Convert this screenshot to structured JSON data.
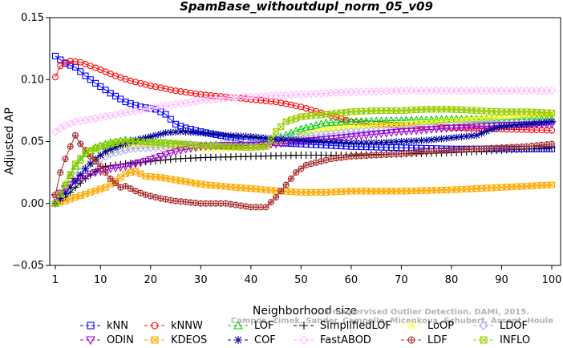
{
  "chart_data": {
    "type": "line",
    "title": "SpamBase_withoutdupl_norm_05_v09",
    "xlabel": "Neighborhood size",
    "ylabel": "Adjusted AP",
    "xlim": [
      1,
      100
    ],
    "ylim": [
      -0.05,
      0.15
    ],
    "x_ticks": [
      1,
      10,
      20,
      30,
      40,
      50,
      60,
      70,
      80,
      90,
      100
    ],
    "y_ticks": [
      -0.05,
      0.0,
      0.05,
      0.1,
      0.15
    ],
    "x_tick_labels": [
      "1",
      "10",
      "20",
      "30",
      "40",
      "50",
      "60",
      "70",
      "80",
      "90",
      "100"
    ],
    "y_tick_labels": [
      "−0.05",
      "0.00",
      "0.05",
      "0.10",
      "0.15"
    ],
    "grid": false,
    "legend_position": "bottom",
    "series": [
      {
        "name": "kNN",
        "color": "#0000ff",
        "marker": "square",
        "points": [
          [
            1,
            0.119
          ],
          [
            3,
            0.113
          ],
          [
            5,
            0.11
          ],
          [
            7,
            0.103
          ],
          [
            9,
            0.097
          ],
          [
            12,
            0.089
          ],
          [
            15,
            0.082
          ],
          [
            18,
            0.078
          ],
          [
            21,
            0.076
          ],
          [
            23,
            0.072
          ],
          [
            25,
            0.064
          ],
          [
            27,
            0.061
          ],
          [
            30,
            0.058
          ],
          [
            35,
            0.054
          ],
          [
            40,
            0.051
          ],
          [
            45,
            0.049
          ],
          [
            50,
            0.048
          ],
          [
            55,
            0.047
          ],
          [
            60,
            0.046
          ],
          [
            70,
            0.045
          ],
          [
            80,
            0.044
          ],
          [
            90,
            0.044
          ],
          [
            100,
            0.044
          ]
        ]
      },
      {
        "name": "kNNW",
        "color": "#ff0000",
        "marker": "circle",
        "points": [
          [
            1,
            0.102
          ],
          [
            2,
            0.111
          ],
          [
            3,
            0.114
          ],
          [
            4,
            0.115
          ],
          [
            6,
            0.114
          ],
          [
            8,
            0.111
          ],
          [
            10,
            0.108
          ],
          [
            13,
            0.103
          ],
          [
            16,
            0.099
          ],
          [
            20,
            0.095
          ],
          [
            25,
            0.091
          ],
          [
            30,
            0.088
          ],
          [
            35,
            0.086
          ],
          [
            40,
            0.084
          ],
          [
            45,
            0.082
          ],
          [
            50,
            0.078
          ],
          [
            55,
            0.072
          ],
          [
            60,
            0.066
          ],
          [
            65,
            0.064
          ],
          [
            70,
            0.063
          ],
          [
            80,
            0.061
          ],
          [
            90,
            0.06
          ],
          [
            100,
            0.059
          ]
        ]
      },
      {
        "name": "LOF",
        "color": "#00cc00",
        "marker": "triangle",
        "points": [
          [
            1,
            0.0
          ],
          [
            3,
            0.015
          ],
          [
            5,
            0.03
          ],
          [
            7,
            0.04
          ],
          [
            9,
            0.045
          ],
          [
            12,
            0.049
          ],
          [
            15,
            0.051
          ],
          [
            20,
            0.05
          ],
          [
            25,
            0.048
          ],
          [
            30,
            0.047
          ],
          [
            35,
            0.046
          ],
          [
            40,
            0.047
          ],
          [
            45,
            0.052
          ],
          [
            50,
            0.06
          ],
          [
            55,
            0.065
          ],
          [
            60,
            0.066
          ],
          [
            70,
            0.067
          ],
          [
            80,
            0.068
          ],
          [
            90,
            0.068
          ],
          [
            100,
            0.068
          ]
        ]
      },
      {
        "name": "SimplifiedLOF",
        "color": "#000000",
        "marker": "plus",
        "points": [
          [
            1,
            0.0
          ],
          [
            3,
            0.005
          ],
          [
            5,
            0.013
          ],
          [
            7,
            0.02
          ],
          [
            9,
            0.026
          ],
          [
            11,
            0.03
          ],
          [
            15,
            0.032
          ],
          [
            20,
            0.034
          ],
          [
            25,
            0.036
          ],
          [
            30,
            0.037
          ],
          [
            40,
            0.038
          ],
          [
            50,
            0.039
          ],
          [
            60,
            0.039
          ],
          [
            70,
            0.04
          ],
          [
            80,
            0.041
          ],
          [
            90,
            0.043
          ],
          [
            100,
            0.045
          ]
        ]
      },
      {
        "name": "LoOP",
        "color": "#ffff00",
        "marker": "cross",
        "points": [
          [
            1,
            0.0
          ],
          [
            3,
            0.012
          ],
          [
            5,
            0.025
          ],
          [
            8,
            0.035
          ],
          [
            12,
            0.042
          ],
          [
            15,
            0.046
          ],
          [
            20,
            0.046
          ],
          [
            25,
            0.045
          ],
          [
            30,
            0.044
          ],
          [
            35,
            0.044
          ],
          [
            40,
            0.045
          ],
          [
            45,
            0.048
          ],
          [
            50,
            0.055
          ],
          [
            55,
            0.06
          ],
          [
            60,
            0.062
          ],
          [
            70,
            0.064
          ],
          [
            80,
            0.067
          ],
          [
            90,
            0.07
          ],
          [
            100,
            0.072
          ]
        ]
      },
      {
        "name": "LDOF",
        "color": "#aaaaff",
        "marker": "diamond",
        "points": [
          [
            1,
            0.0
          ],
          [
            3,
            0.01
          ],
          [
            5,
            0.022
          ],
          [
            8,
            0.032
          ],
          [
            12,
            0.04
          ],
          [
            16,
            0.044
          ],
          [
            20,
            0.045
          ],
          [
            25,
            0.046
          ],
          [
            30,
            0.047
          ],
          [
            35,
            0.048
          ],
          [
            40,
            0.05
          ],
          [
            45,
            0.052
          ],
          [
            50,
            0.054
          ],
          [
            55,
            0.056
          ],
          [
            60,
            0.058
          ],
          [
            70,
            0.06
          ],
          [
            80,
            0.063
          ],
          [
            90,
            0.065
          ],
          [
            100,
            0.066
          ]
        ]
      },
      {
        "name": "ODIN",
        "color": "#9900cc",
        "marker": "triangle-down",
        "points": [
          [
            1,
            0.005
          ],
          [
            3,
            0.012
          ],
          [
            5,
            0.018
          ],
          [
            8,
            0.024
          ],
          [
            12,
            0.028
          ],
          [
            15,
            0.03
          ],
          [
            18,
            0.033
          ],
          [
            22,
            0.038
          ],
          [
            26,
            0.043
          ],
          [
            30,
            0.046
          ],
          [
            35,
            0.047
          ],
          [
            40,
            0.047
          ],
          [
            45,
            0.048
          ],
          [
            50,
            0.05
          ],
          [
            55,
            0.052
          ],
          [
            60,
            0.054
          ],
          [
            70,
            0.058
          ],
          [
            80,
            0.061
          ],
          [
            90,
            0.063
          ],
          [
            100,
            0.064
          ]
        ]
      },
      {
        "name": "KDEOS",
        "color": "#ffaa00",
        "marker": "square-x",
        "points": [
          [
            1,
            0.0
          ],
          [
            3,
            0.002
          ],
          [
            5,
            0.005
          ],
          [
            8,
            0.009
          ],
          [
            11,
            0.013
          ],
          [
            13,
            0.018
          ],
          [
            15,
            0.024
          ],
          [
            17,
            0.026
          ],
          [
            19,
            0.022
          ],
          [
            22,
            0.021
          ],
          [
            25,
            0.019
          ],
          [
            28,
            0.017
          ],
          [
            31,
            0.015
          ],
          [
            34,
            0.014
          ],
          [
            37,
            0.013
          ],
          [
            40,
            0.012
          ],
          [
            43,
            0.011
          ],
          [
            46,
            0.01
          ],
          [
            50,
            0.009
          ],
          [
            55,
            0.009
          ],
          [
            60,
            0.01
          ],
          [
            70,
            0.01
          ],
          [
            80,
            0.011
          ],
          [
            90,
            0.013
          ],
          [
            100,
            0.015
          ]
        ]
      },
      {
        "name": "COF",
        "color": "#000099",
        "marker": "asterisk",
        "points": [
          [
            1,
            0.0
          ],
          [
            3,
            0.008
          ],
          [
            5,
            0.018
          ],
          [
            7,
            0.028
          ],
          [
            9,
            0.036
          ],
          [
            11,
            0.042
          ],
          [
            14,
            0.047
          ],
          [
            17,
            0.051
          ],
          [
            20,
            0.054
          ],
          [
            23,
            0.057
          ],
          [
            26,
            0.058
          ],
          [
            30,
            0.057
          ],
          [
            35,
            0.055
          ],
          [
            40,
            0.054
          ],
          [
            45,
            0.052
          ],
          [
            50,
            0.051
          ],
          [
            55,
            0.05
          ],
          [
            60,
            0.049
          ],
          [
            65,
            0.049
          ],
          [
            70,
            0.05
          ],
          [
            75,
            0.051
          ],
          [
            80,
            0.053
          ],
          [
            85,
            0.055
          ],
          [
            88,
            0.06
          ],
          [
            90,
            0.062
          ],
          [
            95,
            0.064
          ],
          [
            100,
            0.066
          ]
        ]
      },
      {
        "name": "FastABOD",
        "color": "#ffbbff",
        "marker": "diamond",
        "points": [
          [
            1,
            0.058
          ],
          [
            3,
            0.063
          ],
          [
            5,
            0.066
          ],
          [
            8,
            0.068
          ],
          [
            12,
            0.071
          ],
          [
            16,
            0.074
          ],
          [
            20,
            0.077
          ],
          [
            25,
            0.08
          ],
          [
            30,
            0.083
          ],
          [
            35,
            0.085
          ],
          [
            40,
            0.086
          ],
          [
            45,
            0.087
          ],
          [
            50,
            0.088
          ],
          [
            55,
            0.089
          ],
          [
            60,
            0.09
          ],
          [
            70,
            0.091
          ],
          [
            80,
            0.091
          ],
          [
            90,
            0.091
          ],
          [
            100,
            0.091
          ]
        ]
      },
      {
        "name": "LDF",
        "color": "#a52a2a",
        "marker": "circle-plus",
        "points": [
          [
            1,
            0.007
          ],
          [
            2,
            0.025
          ],
          [
            3,
            0.036
          ],
          [
            4,
            0.046
          ],
          [
            5,
            0.055
          ],
          [
            6,
            0.048
          ],
          [
            8,
            0.038
          ],
          [
            10,
            0.03
          ],
          [
            12,
            0.02
          ],
          [
            14,
            0.013
          ],
          [
            15,
            0.014
          ],
          [
            17,
            0.01
          ],
          [
            19,
            0.007
          ],
          [
            22,
            0.004
          ],
          [
            25,
            0.002
          ],
          [
            30,
            0.0
          ],
          [
            35,
            0.0
          ],
          [
            40,
            -0.003
          ],
          [
            43,
            -0.003
          ],
          [
            45,
            0.005
          ],
          [
            47,
            0.015
          ],
          [
            49,
            0.025
          ],
          [
            51,
            0.031
          ],
          [
            53,
            0.033
          ],
          [
            56,
            0.036
          ],
          [
            60,
            0.038
          ],
          [
            65,
            0.039
          ],
          [
            70,
            0.04
          ],
          [
            75,
            0.042
          ],
          [
            80,
            0.043
          ],
          [
            85,
            0.044
          ],
          [
            90,
            0.045
          ],
          [
            95,
            0.046
          ],
          [
            100,
            0.048
          ]
        ]
      },
      {
        "name": "INFLO",
        "color": "#99cc00",
        "marker": "square-x",
        "points": [
          [
            1,
            0.0
          ],
          [
            3,
            0.015
          ],
          [
            5,
            0.032
          ],
          [
            7,
            0.041
          ],
          [
            10,
            0.046
          ],
          [
            14,
            0.05
          ],
          [
            18,
            0.05
          ],
          [
            22,
            0.049
          ],
          [
            26,
            0.048
          ],
          [
            30,
            0.047
          ],
          [
            35,
            0.046
          ],
          [
            40,
            0.045
          ],
          [
            43,
            0.046
          ],
          [
            45,
            0.058
          ],
          [
            47,
            0.066
          ],
          [
            50,
            0.07
          ],
          [
            55,
            0.072
          ],
          [
            60,
            0.074
          ],
          [
            65,
            0.075
          ],
          [
            70,
            0.075
          ],
          [
            75,
            0.076
          ],
          [
            80,
            0.076
          ],
          [
            85,
            0.075
          ],
          [
            90,
            0.074
          ],
          [
            95,
            0.074
          ],
          [
            100,
            0.073
          ]
        ]
      }
    ]
  },
  "credit": {
    "line1": "Unsupervised Outlier Detection. DAMI, 2015.",
    "line2": "Campos, Zimek, Sander, Campello, Micenkova, Schubert, Assent, Houle"
  }
}
